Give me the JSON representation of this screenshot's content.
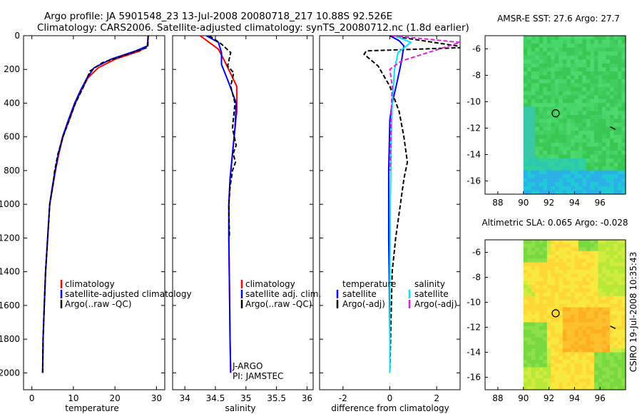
{
  "header": {
    "title_line1": "Argo profile: JA 5901548_23 13-Jul-2008 20080718_217 10.88S 92.526E",
    "title_line2": "Climatology: CARS2006. Satellite-adjusted climatology: synTS_20080712.nc (1.8d earlier)"
  },
  "colors": {
    "climatology": "#ff0000",
    "satellite": "#0000ff",
    "argo": "#000000",
    "sat_salinity": "#00e5ff",
    "argo_salinity": "#e020e0"
  },
  "chart_data": [
    {
      "type": "line",
      "title": "",
      "xlabel": "temperature",
      "ylabel": "",
      "xlim": [
        -2,
        32
      ],
      "ylim": [
        2100,
        0
      ],
      "xticks": [
        "0",
        "10",
        "20",
        "30"
      ],
      "yticks": [
        "0",
        "200",
        "400",
        "600",
        "800",
        "1000",
        "1200",
        "1400",
        "1600",
        "1800",
        "2000"
      ],
      "legend": [
        "climatology",
        "satellite-adjusted climatology",
        "Argo(..raw -QC)"
      ],
      "series": [
        {
          "name": "climatology",
          "x": [
            28.0,
            27.8,
            26,
            20,
            16,
            13.5,
            12,
            10.5,
            9,
            7.5,
            6.5,
            5.7,
            5.0,
            4.3,
            3.8,
            3.3,
            3.0,
            2.7,
            2.6
          ],
          "y": [
            0,
            60,
            90,
            140,
            190,
            250,
            320,
            400,
            500,
            600,
            700,
            800,
            900,
            1000,
            1200,
            1400,
            1600,
            1800,
            2000
          ]
        },
        {
          "name": "satellite",
          "x": [
            28.0,
            27.9,
            25,
            19,
            15,
            13.3,
            11.8,
            10.3,
            8.8,
            7.4,
            6.4,
            5.6,
            4.9,
            4.3,
            3.8,
            3.3,
            3.0,
            2.7,
            2.6
          ],
          "y": [
            0,
            60,
            90,
            140,
            190,
            250,
            320,
            400,
            500,
            600,
            700,
            800,
            900,
            1000,
            1200,
            1400,
            1600,
            1800,
            2000
          ]
        },
        {
          "name": "argo",
          "x": [
            28.0,
            27.9,
            26,
            23,
            17,
            14,
            12.5,
            10.5,
            9,
            7.5,
            6.3,
            5.5,
            5.0,
            4.3,
            3.8,
            3.3,
            3.0,
            2.7,
            2.6
          ],
          "y": [
            0,
            70,
            85,
            110,
            160,
            210,
            300,
            400,
            500,
            600,
            700,
            800,
            900,
            1000,
            1200,
            1400,
            1600,
            1800,
            2000
          ]
        }
      ]
    },
    {
      "type": "line",
      "title": "",
      "xlabel": "salinity",
      "ylabel": "",
      "xlim": [
        33.8,
        36.1
      ],
      "ylim": [
        2100,
        0
      ],
      "xticks": [
        "34",
        "34.5",
        "35",
        "35.5",
        "36"
      ],
      "yticks": [],
      "legend": [
        "climatology",
        "satellite adj. clim.",
        "Argo(..raw -QC)"
      ],
      "annotations": [
        "J-ARGO",
        "PI: JAMSTEC"
      ],
      "series": [
        {
          "name": "climatology",
          "x": [
            34.25,
            34.4,
            34.55,
            34.65,
            34.85,
            34.85,
            34.82,
            34.78,
            34.74,
            34.72,
            34.72,
            34.73,
            34.74,
            34.75
          ],
          "y": [
            0,
            40,
            80,
            150,
            300,
            450,
            550,
            700,
            850,
            1000,
            1200,
            1500,
            1800,
            2000
          ]
        },
        {
          "name": "satellite",
          "x": [
            34.35,
            34.55,
            34.6,
            34.6,
            34.72,
            34.84,
            34.82,
            34.78,
            34.74,
            34.72,
            34.72,
            34.73,
            34.74,
            34.75
          ],
          "y": [
            0,
            40,
            100,
            170,
            280,
            400,
            550,
            700,
            850,
            1000,
            1200,
            1500,
            1800,
            2000
          ]
        },
        {
          "name": "argo",
          "x": [
            34.4,
            34.6,
            34.75,
            34.7,
            34.8,
            34.75,
            34.82,
            34.78,
            34.84,
            34.79,
            34.83,
            34.78,
            34.74,
            34.72,
            34.73
          ],
          "y": [
            0,
            50,
            100,
            180,
            220,
            300,
            400,
            550,
            650,
            700,
            750,
            800,
            900,
            1000,
            1200
          ]
        }
      ]
    },
    {
      "type": "line",
      "title": "",
      "xlabel": "difference from climatology",
      "ylabel": "",
      "xlim": [
        -3,
        3
      ],
      "ylim": [
        2100,
        0
      ],
      "xticks": [
        "-2",
        "0",
        "2"
      ],
      "yticks": [],
      "legend_groups": [
        "temperature",
        "salinity"
      ],
      "legend": [
        "satellite",
        "Argo(-adj)",
        "satellite",
        "Argo(-adj)"
      ],
      "series": [
        {
          "name": "temperature satellite",
          "x": [
            0,
            0.4,
            0.6,
            0.5,
            0.3,
            0.1,
            0.0,
            -0.05,
            -0.05,
            -0.05,
            -0.02,
            0,
            0
          ],
          "y": [
            0,
            30,
            60,
            150,
            280,
            400,
            500,
            800,
            1000,
            1200,
            1500,
            1800,
            2000
          ]
        },
        {
          "name": "temperature argo",
          "x": [
            0,
            3.3,
            -1,
            -1.1,
            -0.5,
            0.0,
            0.4,
            0.6,
            0.75,
            0.6,
            0.45,
            0.25,
            0.1,
            0.05,
            0.0
          ],
          "y": [
            0,
            70,
            90,
            110,
            180,
            300,
            450,
            600,
            750,
            850,
            1000,
            1200,
            1400,
            1700,
            2000
          ]
        },
        {
          "name": "salinity satellite",
          "x": [
            0.2,
            0.9,
            0.35,
            0.2,
            0.1,
            0.05,
            0.02,
            0.0,
            0.0
          ],
          "y": [
            0,
            40,
            100,
            200,
            400,
            700,
            1000,
            1500,
            2000
          ]
        },
        {
          "name": "salinity argo",
          "x": [
            0.1,
            3.0,
            0.5,
            0.0,
            0.1,
            0.05,
            0.02
          ],
          "y": [
            0,
            40,
            150,
            200,
            300,
            500,
            800
          ]
        }
      ]
    },
    {
      "type": "heatmap",
      "title": "AMSR-E SST: 27.6 Argo: 27.7",
      "xlabel": "",
      "ylabel": "",
      "xlim": [
        87,
        98
      ],
      "ylim": [
        -17,
        -5
      ],
      "xticks": [
        "88",
        "90",
        "92",
        "94",
        "96"
      ],
      "yticks": [
        "-6",
        "-8",
        "-10",
        "-12",
        "-14",
        "-16"
      ],
      "float_position": {
        "lon": 92.526,
        "lat": -10.88
      }
    },
    {
      "type": "heatmap",
      "title": "Altimetric SLA: 0.065 Argo: -0.028",
      "xlabel": "",
      "ylabel": "",
      "xlim": [
        87,
        98
      ],
      "ylim": [
        -17,
        -5
      ],
      "xticks": [
        "88",
        "90",
        "92",
        "94",
        "96"
      ],
      "yticks": [
        "-6",
        "-8",
        "-10",
        "-12",
        "-14",
        "-16"
      ],
      "float_position": {
        "lon": 92.526,
        "lat": -10.88
      }
    }
  ],
  "side_label": "CSIRO 19-Jul-2008 10:35:43"
}
